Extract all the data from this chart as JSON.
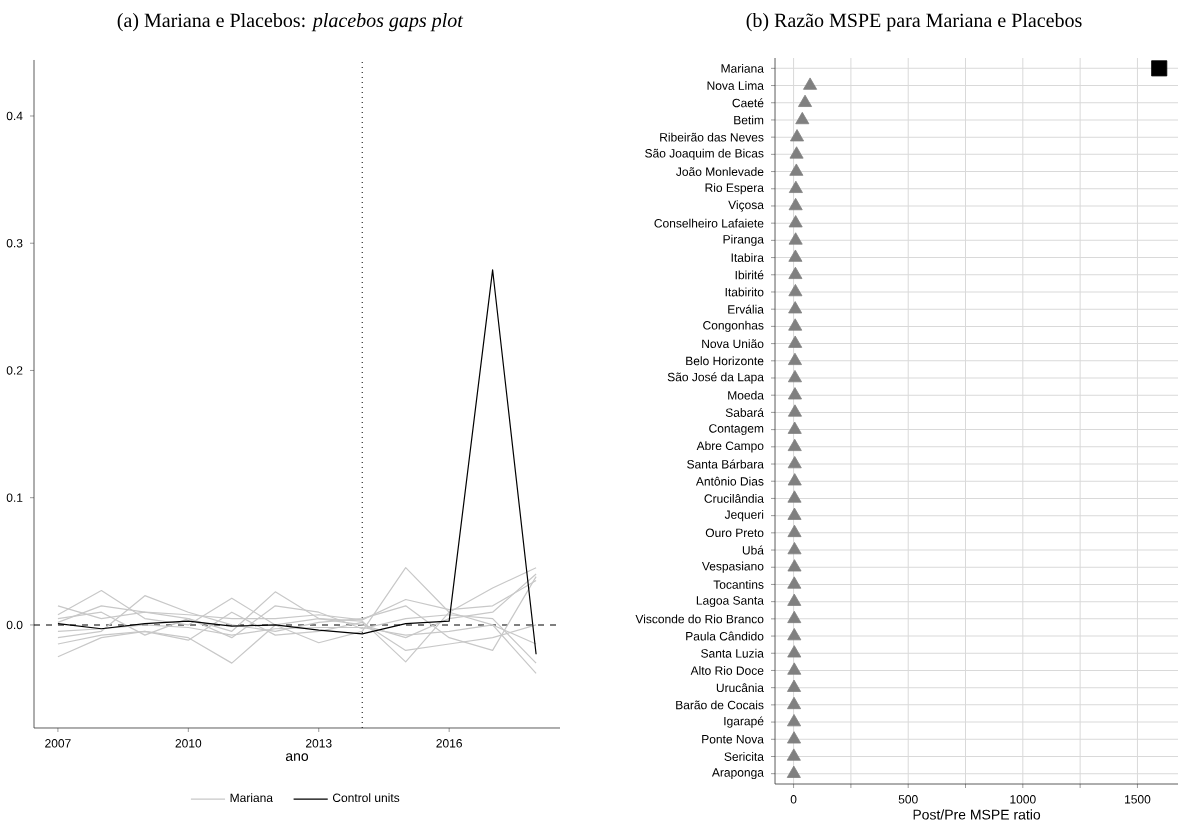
{
  "chart_data": [
    {
      "type": "line",
      "title": "(a) Mariana e Placebos: *placebos gaps plot*",
      "xlabel": "ano",
      "x": [
        2007,
        2008,
        2009,
        2010,
        2011,
        2012,
        2013,
        2014,
        2015,
        2016,
        2017,
        2018
      ],
      "xlim": [
        2006.45,
        2018.55
      ],
      "xticks": [
        2007,
        2010,
        2013,
        2016
      ],
      "ylim": [
        -0.081,
        0.444
      ],
      "yticks": [
        {
          "value": 0,
          "label": "0.0"
        },
        {
          "value": 0.1,
          "label": "0.1"
        },
        {
          "value": 0.2,
          "label": "0.2"
        },
        {
          "value": 0.3,
          "label": "0.3"
        },
        {
          "value": 0.4,
          "label": "0.4"
        }
      ],
      "legend": "bottom",
      "ref_lines": [
        {
          "axis": "y",
          "value": 0,
          "line_style": "dashed",
          "color": "#000000"
        },
        {
          "axis": "x",
          "value": 2014,
          "line_style": "dotted",
          "color": "#000000"
        }
      ],
      "series": [
        {
          "name": "Mariana",
          "color": "#c8c8c8",
          "values": [
            0.015,
            0.005,
            0.01,
            0.005,
            -0.005,
            0.026,
            0.005,
            0.0,
            -0.01,
            0.005,
            0.01,
            0.04
          ]
        },
        {
          "color": "#c8c8c8",
          "values": [
            -0.025,
            -0.01,
            -0.005,
            -0.01,
            -0.03,
            0.0,
            -0.014,
            -0.005,
            0.045,
            0.01,
            0.0,
            -0.038
          ]
        },
        {
          "color": "#c8c8c8",
          "values": [
            0.008,
            0.027,
            0.005,
            0.0,
            0.021,
            0.0,
            0.005,
            0.003,
            -0.029,
            0.01,
            0.029,
            0.045
          ]
        },
        {
          "color": "#c8c8c8",
          "values": [
            -0.01,
            -0.005,
            0.023,
            0.01,
            0.0,
            -0.005,
            0.002,
            0.005,
            0.015,
            -0.01,
            -0.02,
            0.038
          ]
        },
        {
          "color": "#c8c8c8",
          "values": [
            0.005,
            0.01,
            -0.008,
            0.005,
            -0.01,
            0.015,
            0.01,
            -0.003,
            0.005,
            0.008,
            0.005,
            -0.03
          ]
        },
        {
          "color": "#c8c8c8",
          "values": [
            -0.015,
            -0.008,
            -0.005,
            -0.012,
            0.01,
            -0.008,
            -0.005,
            0.002,
            -0.02,
            -0.015,
            -0.01,
            0.0
          ]
        },
        {
          "color": "#c8c8c8",
          "values": [
            0.002,
            0.015,
            0.01,
            0.008,
            0.005,
            0.005,
            0.008,
            0.004,
            0.02,
            0.012,
            0.015,
            0.035
          ]
        },
        {
          "color": "#c8c8c8",
          "values": [
            -0.005,
            -0.003,
            0.0,
            -0.002,
            -0.008,
            -0.003,
            -0.002,
            -0.002,
            -0.008,
            -0.005,
            0.0,
            -0.015
          ]
        },
        {
          "name": "Control units",
          "color": "#000000",
          "values": [
            0.001,
            -0.003,
            0.001,
            0.003,
            -0.001,
            0.0,
            -0.004,
            -0.007,
            0.001,
            0.003,
            0.279,
            -0.023
          ]
        }
      ]
    },
    {
      "type": "scatter",
      "title": "(b) Razão MSPE para Mariana e Placebos",
      "xlabel": "Post/Pre MSPE ratio",
      "orientation": "horizontal",
      "grid": true,
      "categories": [
        "Mariana",
        "Nova Lima",
        "Caeté",
        "Betim",
        "Ribeirão das Neves",
        "São Joaquim de Bicas",
        "João Monlevade",
        "Rio Espera",
        "Viçosa",
        "Conselheiro Lafaiete",
        "Piranga",
        "Itabira",
        "Ibirité",
        "Itabirito",
        "Ervália",
        "Congonhas",
        "Nova União",
        "Belo Horizonte",
        "São José da Lapa",
        "Moeda",
        "Sabará",
        "Contagem",
        "Abre Campo",
        "Santa Bárbara",
        "Antônio Dias",
        "Crucilândia",
        "Jequeri",
        "Ouro Preto",
        "Ubá",
        "Vespasiano",
        "Tocantins",
        "Lagoa Santa",
        "Visconde do Rio Branco",
        "Paula Cândido",
        "Santa Luzia",
        "Alto Rio Doce",
        "Urucânia",
        "Barão de Cocais",
        "Igarapé",
        "Ponte Nova",
        "Sericita",
        "Araponga"
      ],
      "xlim": [
        -81,
        1677
      ],
      "xticks": [
        0,
        {
          "value": 250,
          "label": null
        },
        500,
        {
          "value": 750,
          "label": null
        },
        1000,
        {
          "value": 1250,
          "label": null
        },
        1500
      ],
      "series": [
        {
          "color": "#000000",
          "marker": "square",
          "values": [
            1595,
            null,
            null,
            null,
            null,
            null,
            null,
            null,
            null,
            null,
            null,
            null,
            null,
            null,
            null,
            null,
            null,
            null,
            null,
            null,
            null,
            null,
            null,
            null,
            null,
            null,
            null,
            null,
            null,
            null,
            null,
            null,
            null,
            null,
            null,
            null,
            null,
            null,
            null,
            null,
            null,
            null
          ]
        },
        {
          "color": "#808080",
          "marker": "triangle",
          "values": [
            null,
            72,
            50,
            38,
            15,
            13,
            12,
            10,
            9,
            9,
            9,
            8,
            8,
            8,
            7,
            7,
            7,
            6,
            6,
            6,
            6,
            5,
            5,
            5,
            5,
            4,
            4,
            4,
            4,
            4,
            3,
            3,
            3,
            3,
            3,
            3,
            2,
            2,
            2,
            2,
            1,
            1
          ]
        }
      ]
    }
  ]
}
